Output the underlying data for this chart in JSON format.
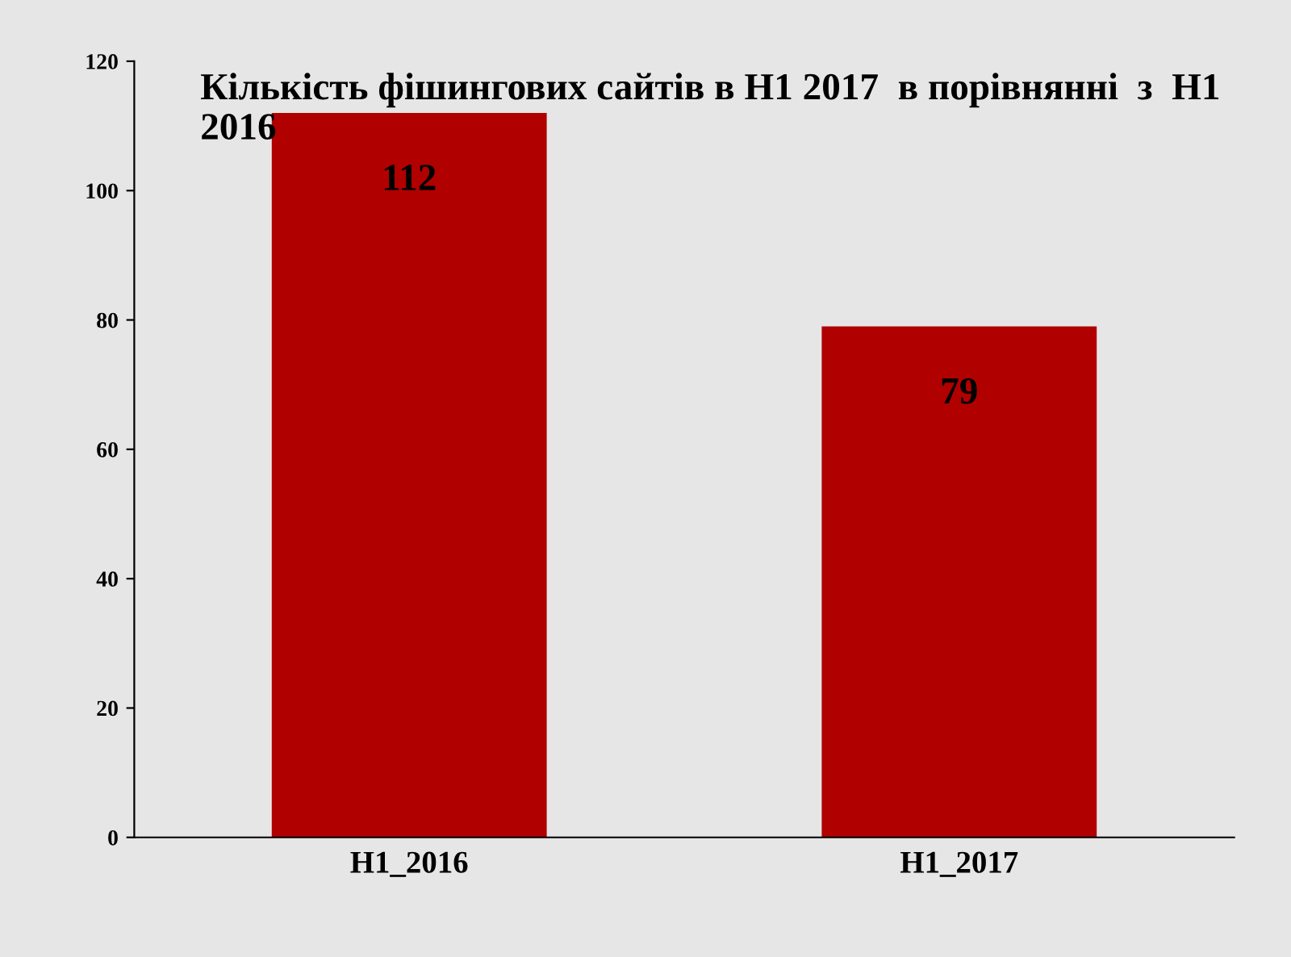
{
  "chart_data": {
    "type": "bar",
    "title": "Кількість фішингових сайтів в H1 2017  в порівнянні  з  H1 2016",
    "categories": [
      "H1_2016",
      "H1_2017"
    ],
    "values": [
      112,
      79
    ],
    "color": "#b00000",
    "ylim": [
      0,
      120
    ],
    "yticks": [
      0,
      20,
      40,
      60,
      80,
      100,
      120
    ],
    "grid": false,
    "data_labels": true
  }
}
